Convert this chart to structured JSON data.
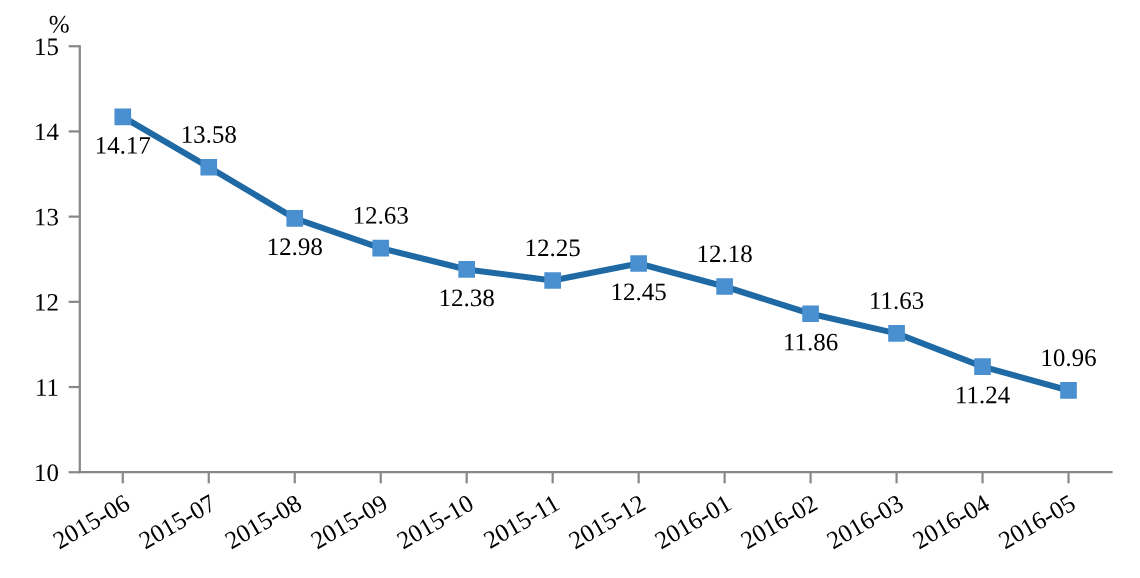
{
  "chart_data": {
    "type": "line",
    "ylabel": "%",
    "categories": [
      "2015-06",
      "2015-07",
      "2015-08",
      "2015-09",
      "2015-10",
      "2015-11",
      "2015-12",
      "2016-01",
      "2016-02",
      "2016-03",
      "2016-04",
      "2016-05"
    ],
    "series": [
      {
        "color": "#1f6aa5",
        "values": [
          14.17,
          13.58,
          12.98,
          12.63,
          12.38,
          12.25,
          12.45,
          12.18,
          11.86,
          11.63,
          11.24,
          10.96
        ]
      }
    ],
    "ylim": [
      10,
      15
    ],
    "yticks": [
      10,
      11,
      12,
      13,
      14,
      15
    ],
    "marker": "square",
    "line_style": "solid",
    "grid": false,
    "legend": false,
    "data_labels": true
  }
}
